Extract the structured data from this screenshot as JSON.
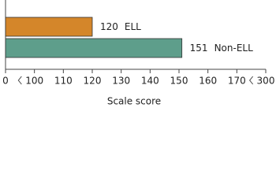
{
  "chart_data": {
    "type": "bar",
    "orientation": "horizontal",
    "categories": [
      "ELL",
      "Non-ELL"
    ],
    "values": [
      120,
      151
    ],
    "colors": [
      "#d4862a",
      "#5e9e8b"
    ],
    "xlabel": "Scale score",
    "xlim": [
      0,
      300
    ],
    "xticks": [
      0,
      100,
      110,
      120,
      130,
      140,
      150,
      160,
      170,
      300
    ],
    "x_breaks": [
      [
        0,
        100
      ],
      [
        170,
        300
      ]
    ]
  }
}
